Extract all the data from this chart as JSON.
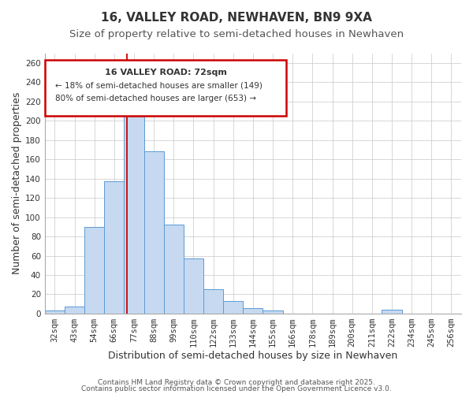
{
  "title": "16, VALLEY ROAD, NEWHAVEN, BN9 9XA",
  "subtitle": "Size of property relative to semi-detached houses in Newhaven",
  "xlabel": "Distribution of semi-detached houses by size in Newhaven",
  "ylabel": "Number of semi-detached properties",
  "bar_labels": [
    "32sqm",
    "43sqm",
    "54sqm",
    "66sqm",
    "77sqm",
    "88sqm",
    "99sqm",
    "110sqm",
    "122sqm",
    "133sqm",
    "144sqm",
    "155sqm",
    "166sqm",
    "178sqm",
    "189sqm",
    "200sqm",
    "211sqm",
    "222sqm",
    "234sqm",
    "245sqm",
    "256sqm"
  ],
  "bar_values": [
    3,
    7,
    90,
    137,
    210,
    168,
    92,
    57,
    25,
    13,
    6,
    3,
    0,
    0,
    0,
    0,
    0,
    4,
    0,
    0,
    0
  ],
  "bar_color": "#c6d9f0",
  "bar_edge_color": "#5b9bd5",
  "ylim": [
    0,
    270
  ],
  "yticks": [
    0,
    20,
    40,
    60,
    80,
    100,
    120,
    140,
    160,
    180,
    200,
    220,
    240,
    260
  ],
  "grid_color": "#c8c8c8",
  "background_color": "#ffffff",
  "annotation_box_text_line1": "16 VALLEY ROAD: 72sqm",
  "annotation_box_text_line2": "← 18% of semi-detached houses are smaller (149)",
  "annotation_box_text_line3": "80% of semi-detached houses are larger (653) →",
  "annotation_box_color": "#cc0000",
  "property_line_x": 3.63,
  "footer_line1": "Contains HM Land Registry data © Crown copyright and database right 2025.",
  "footer_line2": "Contains public sector information licensed under the Open Government Licence v3.0.",
  "title_fontsize": 11,
  "subtitle_fontsize": 9.5,
  "axis_label_fontsize": 9,
  "tick_fontsize": 7.5,
  "annotation_fontsize": 8,
  "footer_fontsize": 6.5
}
